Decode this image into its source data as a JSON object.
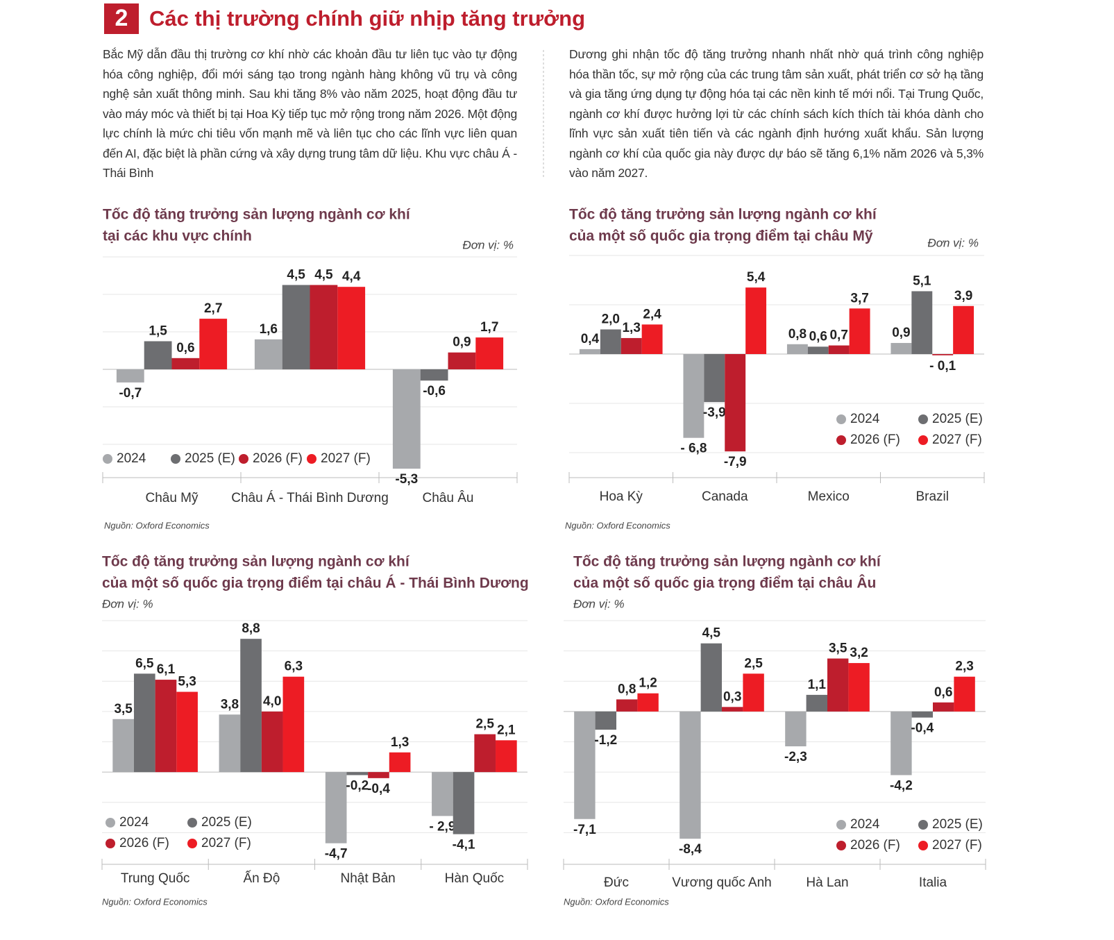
{
  "header": {
    "number": "2",
    "title": "Các thị trường chính giữ nhịp tăng trưởng"
  },
  "paragraphs": [
    "Bắc Mỹ dẫn đầu thị trường cơ khí nhờ các khoản đầu tư liên tục vào tự động hóa công nghiệp, đổi mới sáng tạo trong ngành hàng không vũ trụ và công nghệ sản xuất thông minh. Sau khi tăng 8% vào năm 2025, hoạt động đầu tư vào máy móc và thiết bị tại Hoa Kỳ tiếp tục mở rộng trong năm 2026. Một động lực chính là mức chi tiêu vốn mạnh mẽ và liên tục cho các lĩnh vực liên quan đến AI, đặc biệt là phần cứng và xây dựng trung tâm dữ liệu. Khu vực châu Á - Thái Bình",
    "Dương ghi nhận tốc độ tăng trưởng nhanh nhất nhờ quá trình công nghiệp hóa thần tốc, sự mở rộng của các trung tâm sản xuất, phát triển cơ sở hạ tầng và gia tăng ứng dụng tự động hóa tại các nền kinh tế mới nổi. Tại Trung Quốc, ngành cơ khí được hưởng lợi từ các chính sách kích thích tài khóa dành cho lĩnh vực sản xuất tiên tiến và các ngành định hướng xuất khẩu. Sản lượng ngành cơ khí của quốc gia này được dự báo sẽ tăng 6,1% năm 2026 và 5,3% vào năm 2027."
  ],
  "chart_data": [
    {
      "type": "bar",
      "title": [
        "Tốc độ tăng trưởng sản lượng ngành cơ khí",
        "tại các khu vực chính"
      ],
      "unit": "Đơn vị: %",
      "source": "Nguồn: Oxford Economics",
      "categories": [
        "Châu Mỹ",
        "Châu Á - Thái Bình Dương",
        "Châu Âu"
      ],
      "series": [
        {
          "name": "2024",
          "color": "#a7a9ac",
          "values": [
            -0.7,
            1.6,
            -5.3
          ],
          "value_labels": [
            "-0,7",
            "1,6",
            "-5,3"
          ]
        },
        {
          "name": "2025 (E)",
          "color": "#6d6e71",
          "values": [
            1.5,
            4.5,
            -0.6
          ],
          "value_labels": [
            "1,5",
            "4,5",
            "-0,6"
          ]
        },
        {
          "name": "2026 (F)",
          "color": "#be1e2d",
          "values": [
            0.6,
            4.5,
            0.9
          ],
          "value_labels": [
            "0,6",
            "4,5",
            "0,9"
          ]
        },
        {
          "name": "2027 (F)",
          "color": "#ed1c24",
          "values": [
            2.7,
            4.4,
            1.7
          ],
          "value_labels": [
            "2,7",
            "4,4",
            "1,7"
          ]
        }
      ],
      "ylim": [
        -6,
        6
      ],
      "yticks": [
        -4,
        -2,
        0,
        2,
        4,
        6
      ],
      "grid": true,
      "legend": "bottom-left"
    },
    {
      "type": "bar",
      "title": [
        "Tốc độ tăng trưởng sản lượng ngành cơ khí",
        "của một số quốc gia trọng điểm tại châu Mỹ"
      ],
      "unit": "Đơn vị: %",
      "source": "Nguồn: Oxford Economics",
      "categories": [
        "Hoa Kỳ",
        "Canada",
        "Mexico",
        "Brazil"
      ],
      "series": [
        {
          "name": "2024",
          "color": "#a7a9ac",
          "values": [
            0.4,
            -6.8,
            0.8,
            0.9
          ],
          "value_labels": [
            "0,4",
            "- 6,8",
            "0,8",
            "0,9"
          ]
        },
        {
          "name": "2025 (E)",
          "color": "#6d6e71",
          "values": [
            2.0,
            -3.9,
            0.6,
            5.1
          ],
          "value_labels": [
            "2,0",
            "-3,9",
            "0,6",
            "5,1"
          ]
        },
        {
          "name": "2026 (F)",
          "color": "#be1e2d",
          "values": [
            1.3,
            -7.9,
            0.7,
            -0.1
          ],
          "value_labels": [
            "1,3",
            "-7,9",
            "0,7",
            "- 0,1"
          ]
        },
        {
          "name": "2027 (F)",
          "color": "#ed1c24",
          "values": [
            2.4,
            5.4,
            3.7,
            3.9
          ],
          "value_labels": [
            "2,4",
            "5,4",
            "3,7",
            "3,9"
          ]
        }
      ],
      "ylim": [
        -8,
        8
      ],
      "yticks": [
        -8,
        -4,
        0,
        4,
        8
      ],
      "grid": true,
      "legend": "bottom-right"
    },
    {
      "type": "bar",
      "title": [
        "Tốc độ tăng trưởng sản lượng ngành cơ khí",
        "của một số quốc gia trọng điểm tại châu Á - Thái Bình Dương"
      ],
      "unit": "Đơn vị: %",
      "source": "Nguồn: Oxford Economics",
      "categories": [
        "Trung Quốc",
        "Ấn Độ",
        "Nhật Bản",
        "Hàn Quốc"
      ],
      "series": [
        {
          "name": "2024",
          "color": "#a7a9ac",
          "values": [
            3.5,
            3.8,
            -4.7,
            -2.9
          ],
          "value_labels": [
            "3,5",
            "3,8",
            "-4,7",
            "- 2,9"
          ]
        },
        {
          "name": "2025 (E)",
          "color": "#6d6e71",
          "values": [
            6.5,
            8.8,
            -0.2,
            -4.1
          ],
          "value_labels": [
            "6,5",
            "8,8",
            "-0,2",
            "-4,1"
          ]
        },
        {
          "name": "2026 (F)",
          "color": "#be1e2d",
          "values": [
            6.1,
            4.0,
            -0.4,
            2.5
          ],
          "value_labels": [
            "6,1",
            "4,0",
            "-0,4",
            "2,5"
          ]
        },
        {
          "name": "2027 (F)",
          "color": "#ed1c24",
          "values": [
            5.3,
            6.3,
            1.3,
            2.1
          ],
          "value_labels": [
            "5,3",
            "6,3",
            "1,3",
            "2,1"
          ]
        }
      ],
      "ylim": [
        -6,
        10
      ],
      "yticks": [
        -4,
        -2,
        0,
        2,
        4,
        6,
        8,
        10
      ],
      "grid": true,
      "legend": "bottom-left"
    },
    {
      "type": "bar",
      "title": [
        "Tốc độ tăng trưởng sản lượng ngành cơ khí",
        "của một số quốc gia trọng điểm tại châu Âu"
      ],
      "unit": "Đơn vị: %",
      "source": "Nguồn: Oxford Economics",
      "categories": [
        "Đức",
        "Vương quốc Anh",
        "Hà Lan",
        "Italia"
      ],
      "series": [
        {
          "name": "2024",
          "color": "#a7a9ac",
          "values": [
            -7.1,
            -8.4,
            -2.3,
            -4.2
          ],
          "value_labels": [
            "-7,1",
            "-8,4",
            "-2,3",
            "-4,2"
          ]
        },
        {
          "name": "2025 (E)",
          "color": "#6d6e71",
          "values": [
            -1.2,
            4.5,
            1.1,
            -0.4
          ],
          "value_labels": [
            "-1,2",
            "4,5",
            "1,1",
            "-0,4"
          ]
        },
        {
          "name": "2026 (F)",
          "color": "#be1e2d",
          "values": [
            0.8,
            0.3,
            3.5,
            0.6
          ],
          "value_labels": [
            "0,8",
            "0,3",
            "3,5",
            "0,6"
          ]
        },
        {
          "name": "2027 (F)",
          "color": "#ed1c24",
          "values": [
            1.2,
            2.5,
            3.2,
            2.3
          ],
          "value_labels": [
            "1,2",
            "2,5",
            "3,2",
            "2,3"
          ]
        }
      ],
      "ylim": [
        -10,
        6
      ],
      "yticks": [
        -8,
        -6,
        -4,
        -2,
        0,
        2,
        4,
        6
      ],
      "grid": true,
      "legend": "bottom-right"
    }
  ]
}
